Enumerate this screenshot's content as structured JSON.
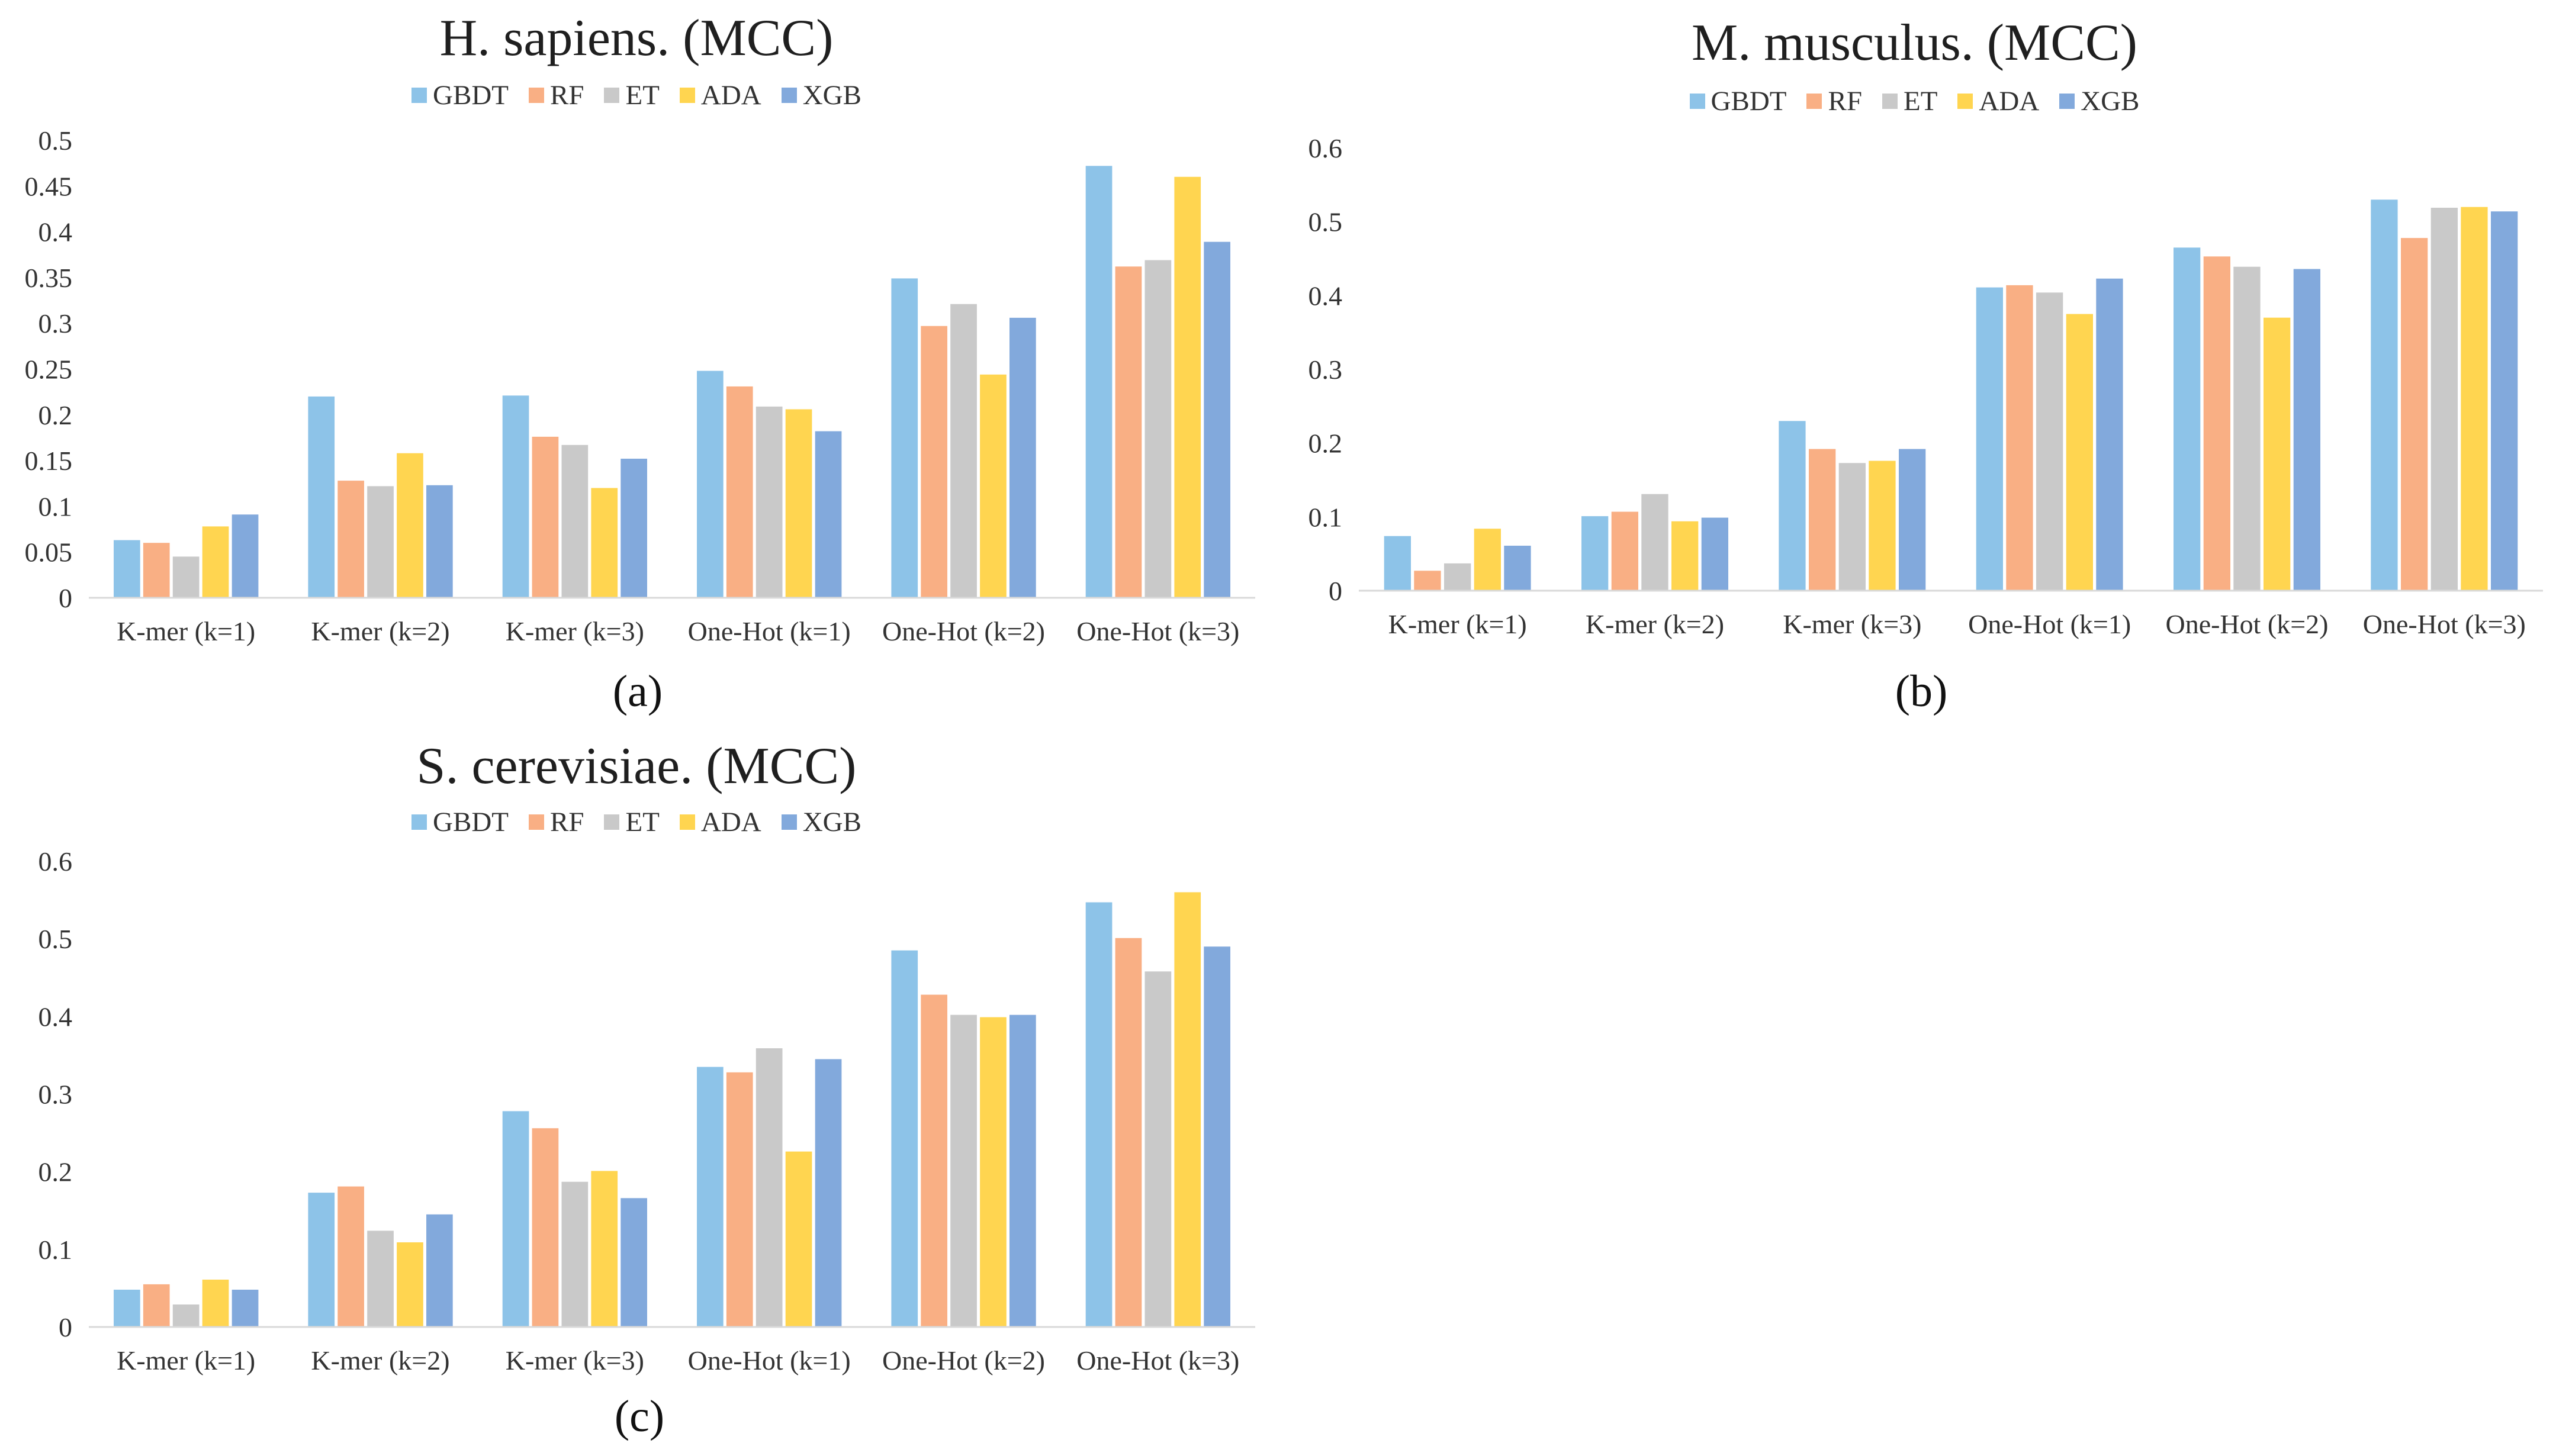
{
  "colors": {
    "GBDT": "#8DC3E8",
    "RF": "#F9AF84",
    "ET": "#C9C9C9",
    "ADA": "#FFD550",
    "XGB": "#82A9DC",
    "axis": "#D9D9D9"
  },
  "chart_data": [
    {
      "type": "bar",
      "panel_label": "(a)",
      "title": "H. sapiens. (MCC)",
      "categories": [
        "K-mer (k=1)",
        "K-mer (k=2)",
        "K-mer (k=3)",
        "One-Hot (k=1)",
        "One-Hot (k=2)",
        "One-Hot (k=3)"
      ],
      "ylim": [
        0,
        0.5
      ],
      "yticks": [
        "0",
        "0.05",
        "0.1",
        "0.15",
        "0.2",
        "0.25",
        "0.3",
        "0.35",
        "0.4",
        "0.45",
        "0.5"
      ],
      "legend_position": "top",
      "series": [
        {
          "name": "GBDT",
          "values": [
            0.063,
            0.22,
            0.221,
            0.248,
            0.349,
            0.472
          ]
        },
        {
          "name": "RF",
          "values": [
            0.06,
            0.128,
            0.176,
            0.231,
            0.297,
            0.362
          ]
        },
        {
          "name": "ET",
          "values": [
            0.045,
            0.122,
            0.167,
            0.209,
            0.321,
            0.369
          ]
        },
        {
          "name": "ADA",
          "values": [
            0.078,
            0.158,
            0.12,
            0.206,
            0.244,
            0.46
          ]
        },
        {
          "name": "XGB",
          "values": [
            0.091,
            0.123,
            0.152,
            0.182,
            0.306,
            0.389
          ]
        }
      ]
    },
    {
      "type": "bar",
      "panel_label": "(b)",
      "title": "M. musculus. (MCC)",
      "categories": [
        "K-mer (k=1)",
        "K-mer (k=2)",
        "K-mer (k=3)",
        "One-Hot (k=1)",
        "One-Hot (k=2)",
        "One-Hot (k=3)"
      ],
      "ylim": [
        0,
        0.6
      ],
      "yticks": [
        "0",
        "0.1",
        "0.2",
        "0.3",
        "0.4",
        "0.5",
        "0.6"
      ],
      "legend_position": "top",
      "series": [
        {
          "name": "GBDT",
          "values": [
            0.074,
            0.101,
            0.23,
            0.411,
            0.465,
            0.53
          ]
        },
        {
          "name": "RF",
          "values": [
            0.027,
            0.107,
            0.192,
            0.414,
            0.453,
            0.478
          ]
        },
        {
          "name": "ET",
          "values": [
            0.037,
            0.131,
            0.173,
            0.404,
            0.439,
            0.519
          ]
        },
        {
          "name": "ADA",
          "values": [
            0.084,
            0.094,
            0.176,
            0.375,
            0.37,
            0.52
          ]
        },
        {
          "name": "XGB",
          "values": [
            0.061,
            0.099,
            0.192,
            0.423,
            0.436,
            0.514
          ]
        }
      ]
    },
    {
      "type": "bar",
      "panel_label": "(c)",
      "title": "S. cerevisiae. (MCC)",
      "categories": [
        "K-mer (k=1)",
        "K-mer (k=2)",
        "K-mer (k=3)",
        "One-Hot (k=1)",
        "One-Hot (k=2)",
        "One-Hot (k=3)"
      ],
      "ylim": [
        0,
        0.6
      ],
      "yticks": [
        "0",
        "0.1",
        "0.2",
        "0.3",
        "0.4",
        "0.5",
        "0.6"
      ],
      "legend_position": "top",
      "series": [
        {
          "name": "GBDT",
          "values": [
            0.048,
            0.173,
            0.278,
            0.335,
            0.485,
            0.547
          ]
        },
        {
          "name": "RF",
          "values": [
            0.055,
            0.181,
            0.256,
            0.328,
            0.428,
            0.501
          ]
        },
        {
          "name": "ET",
          "values": [
            0.029,
            0.124,
            0.187,
            0.359,
            0.402,
            0.458
          ]
        },
        {
          "name": "ADA",
          "values": [
            0.061,
            0.109,
            0.201,
            0.226,
            0.399,
            0.56
          ]
        },
        {
          "name": "XGB",
          "values": [
            0.048,
            0.145,
            0.166,
            0.345,
            0.402,
            0.49
          ]
        }
      ]
    }
  ]
}
